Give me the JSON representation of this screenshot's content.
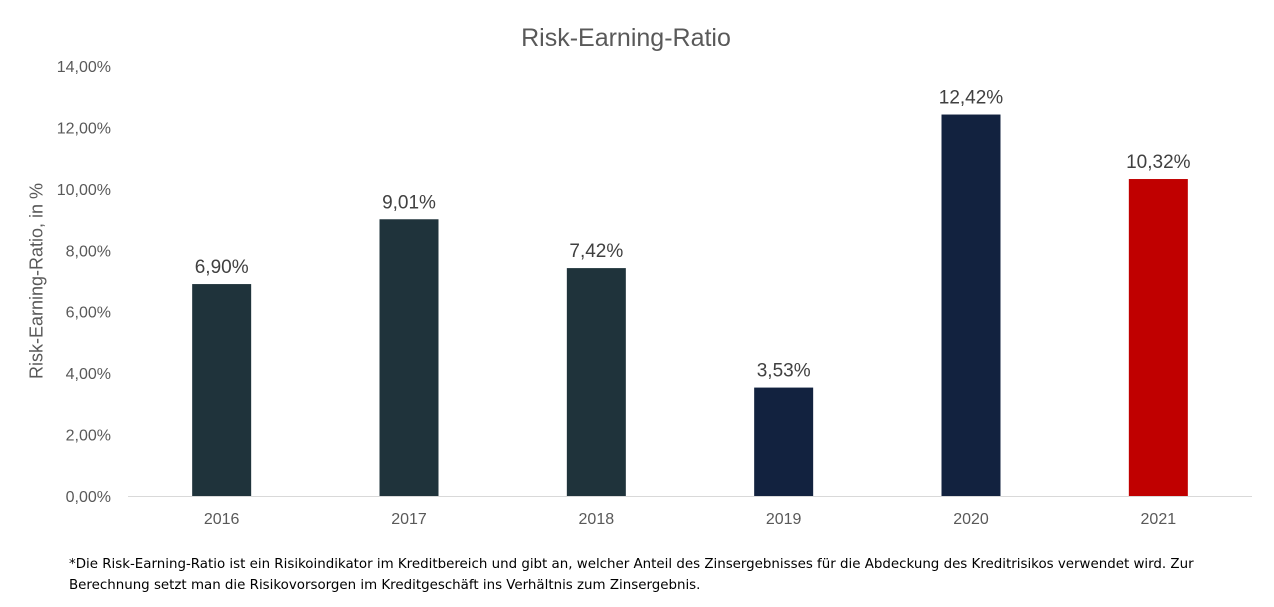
{
  "chart_data": {
    "type": "bar",
    "title": "Risk-Earning-Ratio",
    "xlabel": "",
    "ylabel": "Risk-Earning-Ratio, in %",
    "categories": [
      "2016",
      "2017",
      "2018",
      "2019",
      "2020",
      "2021"
    ],
    "values": [
      6.9,
      9.01,
      7.42,
      3.53,
      12.42,
      10.32
    ],
    "data_labels": [
      "6,90%",
      "9,01%",
      "7,42%",
      "3,53%",
      "12,42%",
      "10,32%"
    ],
    "bar_colors": [
      "#1f333b",
      "#1f333b",
      "#1f333b",
      "#12223f",
      "#12223f",
      "#c00000"
    ],
    "ylim": [
      0,
      14
    ],
    "yticks": [
      0,
      2,
      4,
      6,
      8,
      10,
      12,
      14
    ],
    "ytick_labels": [
      "0,00%",
      "2,00%",
      "4,00%",
      "6,00%",
      "8,00%",
      "10,00%",
      "12,00%",
      "14,00%"
    ],
    "grid": false,
    "legend": "none"
  },
  "footnote": "*Die Risk-Earning-Ratio ist ein Risikoindikator im Kreditbereich und gibt an, welcher Anteil des Zinsergebnisses für die Abdeckung des Kreditrisikos verwendet wird. Zur Berechnung setzt man die Risikovorsorgen im Kreditgeschäft ins Verhältnis zum Zinsergebnis."
}
